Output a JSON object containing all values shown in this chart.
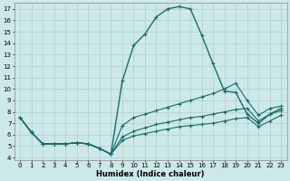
{
  "xlabel": "Humidex (Indice chaleur)",
  "xlim": [
    -0.5,
    23.5
  ],
  "ylim": [
    3.8,
    17.5
  ],
  "xticks": [
    0,
    1,
    2,
    3,
    4,
    5,
    6,
    7,
    8,
    9,
    10,
    11,
    12,
    13,
    14,
    15,
    16,
    17,
    18,
    19,
    20,
    21,
    22,
    23
  ],
  "yticks": [
    4,
    5,
    6,
    7,
    8,
    9,
    10,
    11,
    12,
    13,
    14,
    15,
    16,
    17
  ],
  "bg_color": "#cde8e8",
  "grid_color": "#b0cccc",
  "line_color": "#1a6b6b",
  "curves": [
    {
      "x": [
        0,
        1,
        2,
        3,
        4,
        5,
        6,
        7,
        8,
        9,
        10,
        11,
        12,
        13,
        14,
        15,
        16,
        17,
        18,
        19,
        20,
        21,
        22,
        23
      ],
      "y": [
        7.5,
        6.2,
        5.2,
        5.2,
        5.2,
        5.3,
        5.2,
        4.8,
        4.3,
        10.7,
        13.8,
        14.8,
        16.3,
        17.0,
        17.2,
        17.0,
        14.7,
        12.2,
        9.8,
        9.7,
        7.8,
        7.0,
        7.8,
        8.3
      ]
    },
    {
      "x": [
        0,
        1,
        2,
        3,
        4,
        5,
        6,
        7,
        8,
        9,
        10,
        11,
        12,
        13,
        14,
        15,
        16,
        17,
        18,
        19,
        20,
        21,
        22,
        23
      ],
      "y": [
        7.5,
        6.2,
        5.2,
        5.2,
        5.2,
        5.3,
        5.2,
        4.8,
        4.3,
        6.8,
        7.5,
        7.8,
        8.1,
        8.4,
        8.7,
        9.0,
        9.3,
        9.6,
        10.0,
        10.5,
        9.0,
        7.7,
        8.3,
        8.5
      ]
    },
    {
      "x": [
        0,
        1,
        2,
        3,
        4,
        5,
        6,
        7,
        8,
        9,
        10,
        11,
        12,
        13,
        14,
        15,
        16,
        17,
        18,
        19,
        20,
        21,
        22,
        23
      ],
      "y": [
        7.5,
        6.2,
        5.2,
        5.2,
        5.2,
        5.3,
        5.2,
        4.8,
        4.3,
        5.8,
        6.3,
        6.6,
        6.9,
        7.1,
        7.3,
        7.5,
        7.6,
        7.8,
        8.0,
        8.2,
        8.3,
        7.2,
        7.8,
        8.1
      ]
    },
    {
      "x": [
        0,
        1,
        2,
        3,
        4,
        5,
        6,
        7,
        8,
        9,
        10,
        11,
        12,
        13,
        14,
        15,
        16,
        17,
        18,
        19,
        20,
        21,
        22,
        23
      ],
      "y": [
        7.5,
        6.2,
        5.2,
        5.2,
        5.2,
        5.3,
        5.2,
        4.8,
        4.3,
        5.5,
        5.9,
        6.1,
        6.3,
        6.5,
        6.7,
        6.8,
        6.9,
        7.0,
        7.2,
        7.4,
        7.5,
        6.7,
        7.2,
        7.7
      ]
    }
  ]
}
